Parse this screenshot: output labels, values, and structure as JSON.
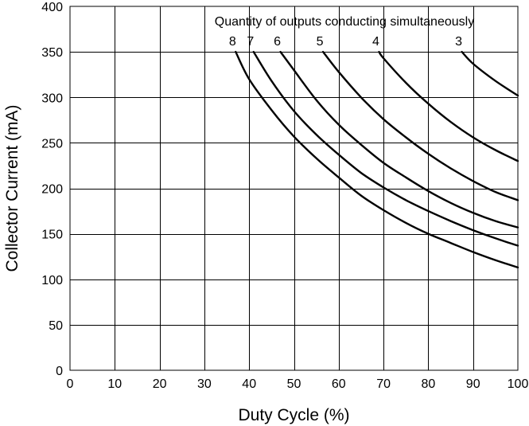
{
  "chart_data": {
    "type": "line",
    "title": "",
    "annotation": "Quantity of outputs conducting simultaneously",
    "xlabel": "Duty Cycle (%)",
    "ylabel": "Collector Current (mA)",
    "xlim": [
      0,
      100
    ],
    "ylim": [
      0,
      400
    ],
    "xticks": [
      0,
      10,
      20,
      30,
      40,
      50,
      60,
      70,
      80,
      90,
      100
    ],
    "yticks": [
      0,
      50,
      100,
      150,
      200,
      250,
      300,
      350,
      400
    ],
    "grid": true,
    "series": [
      {
        "name": "8",
        "x": [
          37,
          40,
          45,
          50,
          55,
          60,
          65,
          70,
          75,
          80,
          85,
          90,
          95,
          100
        ],
        "y": [
          350,
          320,
          286,
          257,
          233,
          212,
          192,
          176,
          162,
          150,
          140,
          130,
          121,
          113
        ]
      },
      {
        "name": "7",
        "x": [
          41,
          45,
          50,
          55,
          60,
          65,
          70,
          75,
          80,
          85,
          90,
          95,
          100
        ],
        "y": [
          350,
          318,
          285,
          259,
          237,
          217,
          201,
          187,
          175,
          164,
          154,
          145,
          137
        ]
      },
      {
        "name": "6",
        "x": [
          47,
          50,
          55,
          60,
          65,
          70,
          75,
          80,
          85,
          90,
          95,
          100
        ],
        "y": [
          350,
          330,
          297,
          270,
          248,
          228,
          212,
          197,
          184,
          173,
          164,
          157
        ]
      },
      {
        "name": "5",
        "x": [
          56.5,
          60,
          65,
          70,
          75,
          80,
          85,
          90,
          95,
          100
        ],
        "y": [
          350,
          328,
          300,
          276,
          256,
          238,
          222,
          208,
          196,
          187
        ]
      },
      {
        "name": "4",
        "x": [
          69,
          70,
          75,
          80,
          85,
          90,
          95,
          100
        ],
        "y": [
          350,
          343,
          316,
          293,
          273,
          256,
          242,
          230
        ]
      },
      {
        "name": "3",
        "x": [
          87.5,
          90,
          95,
          100
        ],
        "y": [
          350,
          337,
          318,
          302
        ]
      }
    ]
  }
}
